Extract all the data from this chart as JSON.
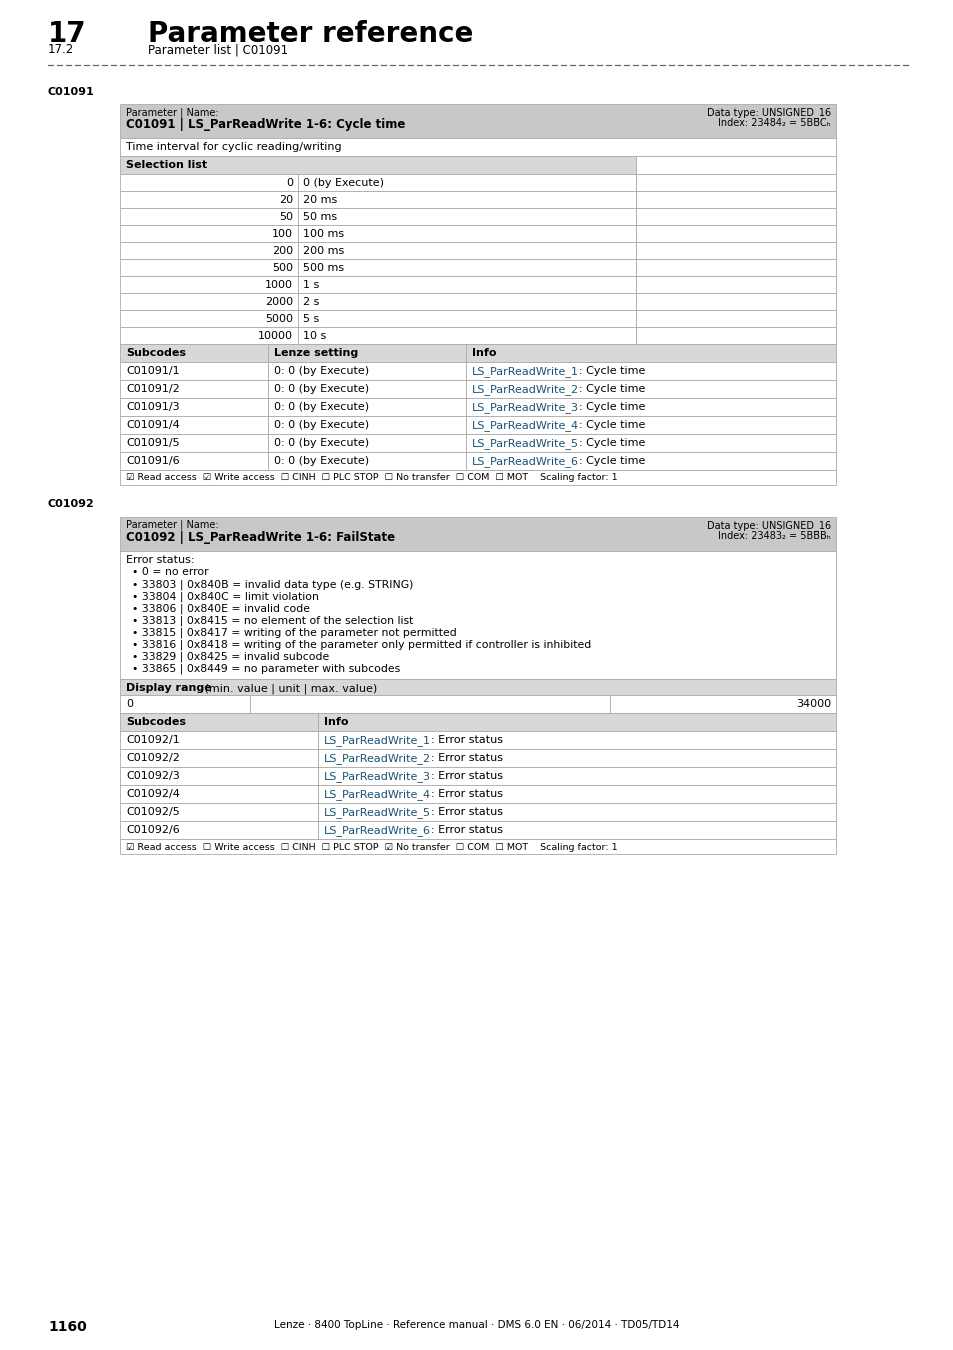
{
  "page_num": "1160",
  "chapter": "17",
  "chapter_title": "Parameter reference",
  "section": "17.2",
  "section_title": "Parameter list | C01091",
  "footer_text": "Lenze · 8400 TopLine · Reference manual · DMS 6.0 EN · 06/2014 · TD05/TD14",
  "c01091_label": "C01091",
  "c01091_param_label": "Parameter | Name:",
  "c01091_param_name": "C01091 | LS_ParReadWrite 1-6: Cycle time",
  "c01091_data_type": "Data type: UNSIGNED_16",
  "c01091_index": "Index: 23484₂ = 5BBCₕ",
  "c01091_description": "Time interval for cyclic reading/writing",
  "c01091_selection_header": "Selection list",
  "c01091_selection": [
    [
      "0",
      "0 (by Execute)"
    ],
    [
      "20",
      "20 ms"
    ],
    [
      "50",
      "50 ms"
    ],
    [
      "100",
      "100 ms"
    ],
    [
      "200",
      "200 ms"
    ],
    [
      "500",
      "500 ms"
    ],
    [
      "1000",
      "1 s"
    ],
    [
      "2000",
      "2 s"
    ],
    [
      "5000",
      "5 s"
    ],
    [
      "10000",
      "10 s"
    ]
  ],
  "c01091_subcodes_header": [
    "Subcodes",
    "Lenze setting",
    "Info"
  ],
  "c01091_subcodes": [
    [
      "C01091/1",
      "0: 0 (by Execute)",
      "LS_ParReadWrite_1",
      ": Cycle time"
    ],
    [
      "C01091/2",
      "0: 0 (by Execute)",
      "LS_ParReadWrite_2",
      ": Cycle time"
    ],
    [
      "C01091/3",
      "0: 0 (by Execute)",
      "LS_ParReadWrite_3",
      ": Cycle time"
    ],
    [
      "C01091/4",
      "0: 0 (by Execute)",
      "LS_ParReadWrite_4",
      ": Cycle time"
    ],
    [
      "C01091/5",
      "0: 0 (by Execute)",
      "LS_ParReadWrite_5",
      ": Cycle time"
    ],
    [
      "C01091/6",
      "0: 0 (by Execute)",
      "LS_ParReadWrite_6",
      ": Cycle time"
    ]
  ],
  "c01091_footer": "☑ Read access  ☑ Write access  ☐ CINH  ☐ PLC STOP  ☐ No transfer  ☐ COM  ☐ MOT    Scaling factor: 1",
  "c01092_label": "C01092",
  "c01092_param_label": "Parameter | Name:",
  "c01092_param_name": "C01092 | LS_ParReadWrite 1-6: FailState",
  "c01092_data_type": "Data type: UNSIGNED_16",
  "c01092_index": "Index: 23483₂ = 5BBBₕ",
  "c01092_error_title": "Error status:",
  "c01092_error_items": [
    "• 0 = no error",
    "• 33803 | 0x840B = invalid data type (e.g. STRING)",
    "• 33804 | 0x840C = limit violation",
    "• 33806 | 0x840E = invalid code",
    "• 33813 | 0x8415 = no element of the selection list",
    "• 33815 | 0x8417 = writing of the parameter not permitted",
    "• 33816 | 0x8418 = writing of the parameter only permitted if controller is inhibited",
    "• 33829 | 0x8425 = invalid subcode",
    "• 33865 | 0x8449 = no parameter with subcodes"
  ],
  "c01092_display_header": "Display range (min. value | unit | max. value)",
  "c01092_display_range": [
    "0",
    "",
    "34000"
  ],
  "c01092_subcodes_header": [
    "Subcodes",
    "Info"
  ],
  "c01092_subcodes": [
    [
      "C01092/1",
      "LS_ParReadWrite_1",
      ": Error status"
    ],
    [
      "C01092/2",
      "LS_ParReadWrite_2",
      ": Error status"
    ],
    [
      "C01092/3",
      "LS_ParReadWrite_3",
      ": Error status"
    ],
    [
      "C01092/4",
      "LS_ParReadWrite_4",
      ": Error status"
    ],
    [
      "C01092/5",
      "LS_ParReadWrite_5",
      ": Error status"
    ],
    [
      "C01092/6",
      "LS_ParReadWrite_6",
      ": Error status"
    ]
  ],
  "c01092_footer": "☑ Read access  ☐ Write access  ☐ CINH  ☐ PLC STOP  ☑ No transfer  ☐ COM  ☐ MOT    Scaling factor: 1",
  "bg_color": "#ffffff",
  "header_bg": "#c8c8c8",
  "subheader_bg": "#d8d8d8",
  "link_color": "#1a5276",
  "text_color": "#000000",
  "border_color": "#aaaaaa",
  "dash_color": "#666666"
}
